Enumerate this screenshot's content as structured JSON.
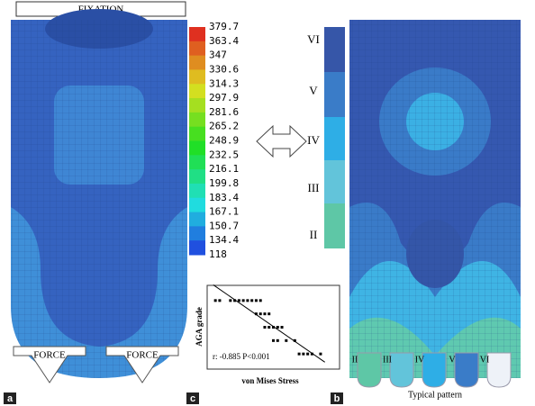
{
  "panel_a": {
    "fixation": "FIXATION",
    "force_left": "FORCE",
    "force_right": "FORCE",
    "letter": "a"
  },
  "colorbar": {
    "labels": [
      "379.7",
      "363.4",
      "347",
      "330.6",
      "314.3",
      "297.9",
      "281.6",
      "265.2",
      "248.9",
      "232.5",
      "216.1",
      "199.8",
      "183.4",
      "167.1",
      "150.7",
      "134.4",
      "118"
    ]
  },
  "panel_b": {
    "grades": [
      "VI",
      "V",
      "IV",
      "III",
      "II"
    ],
    "patterns": [
      "II",
      "III",
      "IV",
      "V",
      "VI"
    ],
    "pattern_caption": "Typical pattern",
    "letter": "b"
  },
  "panel_c": {
    "letter": "c",
    "ylabel": "AGA grade",
    "xlabel": "von Mises Stress",
    "annotation": "r: -0.885 P<0.001",
    "xlim": [
      130,
      190
    ],
    "ylim": [
      1,
      7
    ],
    "x": [
      133,
      135,
      140,
      142,
      144,
      146,
      148,
      150,
      152,
      154,
      152,
      154,
      156,
      158,
      156,
      158,
      160,
      162,
      164,
      160,
      162,
      166,
      170,
      172,
      174,
      176,
      178,
      182
    ],
    "y": [
      6,
      6,
      6,
      6,
      6,
      6,
      6,
      6,
      6,
      6,
      5,
      5,
      5,
      5,
      4,
      4,
      4,
      4,
      4,
      3,
      3,
      3,
      3,
      2,
      2,
      2,
      2,
      2
    ]
  }
}
